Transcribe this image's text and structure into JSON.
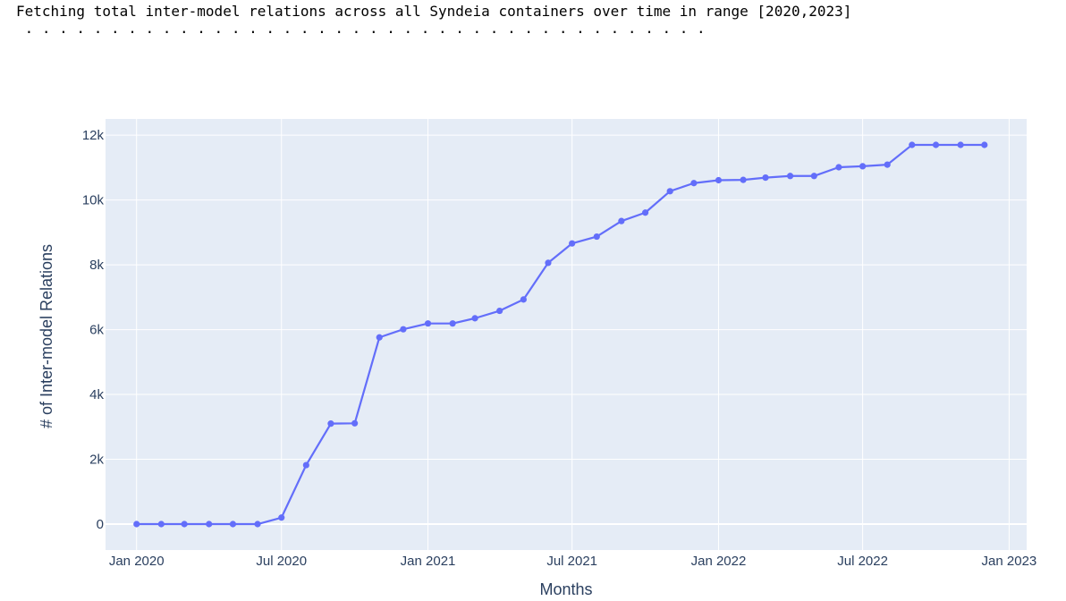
{
  "console": {
    "status_line": "Fetching total inter-model relations across all Syndeia containers over time in range [2020,2023]",
    "progress_dots": " . . . . . . . . . . . . . . . . . . . . . . . . . . . . . . . . . . . . . . . ."
  },
  "chart_data": {
    "type": "line",
    "title": "",
    "xlabel": "Months",
    "ylabel": "# of Inter-model Relations",
    "x_tick_labels": [
      "Jan 2020",
      "Jul 2020",
      "Jan 2021",
      "Jul 2021",
      "Jan 2022",
      "Jul 2022",
      "Jan 2023"
    ],
    "x_ticks": [
      "2020-01",
      "2020-07",
      "2021-01",
      "2021-07",
      "2022-01",
      "2022-07",
      "2023-01"
    ],
    "y_tick_labels": [
      "0",
      "2k",
      "4k",
      "6k",
      "8k",
      "10k",
      "12k"
    ],
    "y_ticks": [
      0,
      2000,
      4000,
      6000,
      8000,
      10000,
      12000
    ],
    "ylim": [
      -800,
      12500
    ],
    "xlim": [
      "2019-11-23",
      "2023-01-23"
    ],
    "grid": true,
    "line_color": "#636efa",
    "plot_bg": "#e5ecf6",
    "x": [
      "2020-01",
      "2020-02",
      "2020-03",
      "2020-04",
      "2020-05",
      "2020-06",
      "2020-07",
      "2020-08",
      "2020-09",
      "2020-10",
      "2020-11",
      "2020-12",
      "2021-01",
      "2021-02",
      "2021-03",
      "2021-04",
      "2021-05",
      "2021-06",
      "2021-07",
      "2021-08",
      "2021-09",
      "2021-10",
      "2021-11",
      "2021-12",
      "2022-01",
      "2022-02",
      "2022-03",
      "2022-04",
      "2022-05",
      "2022-06",
      "2022-07",
      "2022-08",
      "2022-09",
      "2022-10",
      "2022-11",
      "2022-12"
    ],
    "values": [
      0,
      0,
      0,
      0,
      0,
      0,
      200,
      1820,
      3100,
      3110,
      5760,
      6010,
      6190,
      6190,
      6350,
      6580,
      6930,
      8060,
      8660,
      8870,
      9350,
      9610,
      10270,
      10520,
      10610,
      10620,
      10690,
      10740,
      10740,
      11010,
      11040,
      11090,
      11700,
      11700,
      11700,
      11700
    ]
  }
}
